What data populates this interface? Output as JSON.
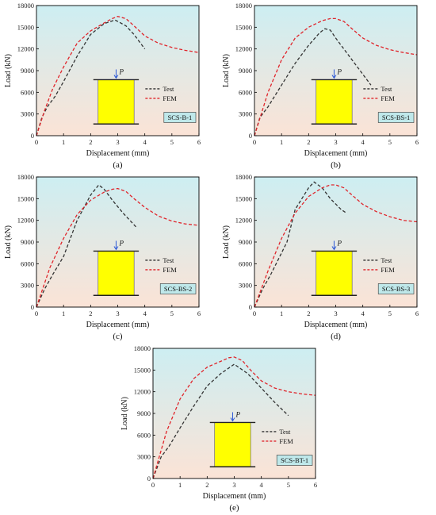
{
  "common": {
    "xlabel": "Displacement (mm)",
    "ylabel": "Load (kN)",
    "legend": [
      "Test",
      "FEM"
    ],
    "load_symbol": "P",
    "colors": {
      "test": "#333333",
      "fem": "#e0242a",
      "specimen": "#ffff00",
      "tag_bg": "#bfe8ea",
      "grad_top": "#cdeef2",
      "grad_bottom": "#fbe3d6"
    }
  },
  "chart_data": [
    {
      "type": "line",
      "caption": "(a)",
      "specimen": "SCS-B-1",
      "xlabel": "Displacement (mm)",
      "ylabel": "Load (kN)",
      "xlim": [
        0,
        6
      ],
      "ylim": [
        0,
        18000
      ],
      "xticks": [
        0,
        1,
        2,
        3,
        4,
        5,
        6
      ],
      "yticks": [
        0,
        3000,
        6000,
        9000,
        12000,
        15000,
        18000
      ],
      "series": [
        {
          "name": "Test",
          "x": [
            0,
            0.2,
            0.4,
            0.7,
            1.0,
            1.5,
            2.0,
            2.5,
            2.9,
            3.0,
            3.3,
            3.6,
            4.0
          ],
          "y": [
            0,
            2500,
            4000,
            5500,
            7500,
            11000,
            14000,
            15500,
            16000,
            15800,
            15200,
            14000,
            12000
          ]
        },
        {
          "name": "FEM",
          "x": [
            0,
            0.3,
            0.6,
            1.0,
            1.5,
            2.0,
            2.5,
            2.8,
            3.0,
            3.3,
            3.6,
            4.0,
            4.5,
            5.0,
            5.5,
            6.0
          ],
          "y": [
            0,
            3500,
            6500,
            9500,
            12800,
            14500,
            15600,
            16200,
            16500,
            16200,
            15200,
            13800,
            12800,
            12200,
            11800,
            11500
          ]
        }
      ]
    },
    {
      "type": "line",
      "caption": "(b)",
      "specimen": "SCS-BS-1",
      "xlabel": "Displacement (mm)",
      "ylabel": "Load (kN)",
      "xlim": [
        0,
        6
      ],
      "ylim": [
        0,
        18000
      ],
      "xticks": [
        0,
        1,
        2,
        3,
        4,
        5,
        6
      ],
      "yticks": [
        0,
        3000,
        6000,
        9000,
        12000,
        15000,
        18000
      ],
      "series": [
        {
          "name": "Test",
          "x": [
            0,
            0.2,
            0.5,
            1.0,
            1.5,
            2.0,
            2.4,
            2.6,
            2.8,
            3.0,
            3.5,
            4.0,
            4.3
          ],
          "y": [
            0,
            2500,
            4000,
            7000,
            10000,
            12500,
            14200,
            14800,
            14600,
            13500,
            11000,
            8500,
            7000
          ]
        },
        {
          "name": "FEM",
          "x": [
            0,
            0.5,
            1.0,
            1.5,
            2.0,
            2.5,
            2.8,
            3.0,
            3.3,
            3.6,
            4.0,
            4.5,
            5.0,
            5.5,
            6.0
          ],
          "y": [
            0,
            6000,
            10500,
            13500,
            15000,
            15900,
            16200,
            16200,
            15800,
            14800,
            13500,
            12500,
            11900,
            11500,
            11200
          ]
        }
      ]
    },
    {
      "type": "line",
      "caption": "(c)",
      "specimen": "SCS-BS-2",
      "xlabel": "Displacement (mm)",
      "ylabel": "Load (kN)",
      "xlim": [
        0,
        6
      ],
      "ylim": [
        0,
        18000
      ],
      "xticks": [
        0,
        1,
        2,
        3,
        4,
        5,
        6
      ],
      "yticks": [
        0,
        3000,
        6000,
        9000,
        12000,
        15000,
        18000
      ],
      "series": [
        {
          "name": "Test",
          "x": [
            0,
            0.3,
            0.6,
            1.0,
            1.5,
            2.0,
            2.3,
            2.5,
            2.8,
            3.2,
            3.7
          ],
          "y": [
            0,
            2500,
            4500,
            7000,
            12000,
            15500,
            16900,
            16300,
            14800,
            13000,
            11000
          ]
        },
        {
          "name": "FEM",
          "x": [
            0,
            0.5,
            1.0,
            1.5,
            2.0,
            2.5,
            2.8,
            3.0,
            3.3,
            3.6,
            4.0,
            4.5,
            5.0,
            5.5,
            6.0
          ],
          "y": [
            0,
            5500,
            9500,
            12800,
            14800,
            15900,
            16300,
            16400,
            16000,
            15000,
            13800,
            12600,
            11900,
            11500,
            11300
          ]
        }
      ]
    },
    {
      "type": "line",
      "caption": "(d)",
      "specimen": "SCS-BS-3",
      "xlabel": "Displacement (mm)",
      "ylabel": "Load (kN)",
      "xlim": [
        0,
        6
      ],
      "ylim": [
        0,
        18000
      ],
      "xticks": [
        0,
        1,
        2,
        3,
        4,
        5,
        6
      ],
      "yticks": [
        0,
        3000,
        6000,
        9000,
        12000,
        15000,
        18000
      ],
      "series": [
        {
          "name": "Test",
          "x": [
            0,
            0.3,
            0.6,
            1.0,
            1.2,
            1.5,
            2.0,
            2.2,
            2.5,
            2.8,
            3.2,
            3.4
          ],
          "y": [
            0,
            2500,
            4500,
            7500,
            9000,
            13500,
            16500,
            17300,
            16500,
            15000,
            13500,
            13000
          ]
        },
        {
          "name": "FEM",
          "x": [
            0,
            0.5,
            1.0,
            1.5,
            2.0,
            2.5,
            2.8,
            3.0,
            3.3,
            3.6,
            4.0,
            4.5,
            5.0,
            5.5,
            6.0
          ],
          "y": [
            0,
            5000,
            9500,
            13000,
            15300,
            16500,
            16900,
            16900,
            16500,
            15500,
            14200,
            13200,
            12500,
            12000,
            11800
          ]
        }
      ]
    },
    {
      "type": "line",
      "caption": "(e)",
      "specimen": "SCS-BT-1",
      "xlabel": "Displacement (mm)",
      "ylabel": "Load (kN)",
      "xlim": [
        0,
        6
      ],
      "ylim": [
        0,
        18000
      ],
      "xticks": [
        0,
        1,
        2,
        3,
        4,
        5,
        6
      ],
      "yticks": [
        0,
        3000,
        6000,
        9000,
        12000,
        15000,
        18000
      ],
      "series": [
        {
          "name": "Test",
          "x": [
            0,
            0.3,
            0.6,
            1.0,
            1.5,
            2.0,
            2.5,
            3.0,
            3.5,
            4.0,
            4.5,
            5.0
          ],
          "y": [
            0,
            3000,
            4500,
            7000,
            10000,
            12800,
            14500,
            15800,
            14500,
            12500,
            10500,
            8700
          ]
        },
        {
          "name": "FEM",
          "x": [
            0,
            0.5,
            1.0,
            1.5,
            2.0,
            2.5,
            2.8,
            3.0,
            3.3,
            3.6,
            4.0,
            4.5,
            5.0,
            5.5,
            6.0
          ],
          "y": [
            0,
            6500,
            11000,
            13800,
            15400,
            16200,
            16700,
            16800,
            16300,
            15000,
            13500,
            12500,
            12000,
            11700,
            11500
          ]
        }
      ]
    }
  ]
}
